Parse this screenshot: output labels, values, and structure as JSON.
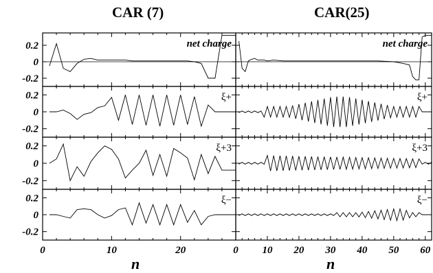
{
  "figure": {
    "columns": [
      {
        "title": "CAR (7)",
        "xlabel": "n"
      },
      {
        "title": "CAR(25)",
        "xlabel": "n"
      }
    ]
  },
  "chart_data": [
    {
      "type": "line",
      "title": "CAR (7)",
      "panel": "net charge",
      "xlabel": "n",
      "xlim": [
        0,
        28
      ],
      "ylim": [
        -0.3,
        0.35
      ],
      "yticks": [
        "0.2",
        "0",
        "-0.2"
      ],
      "xticks": [
        "0",
        "10",
        "20"
      ],
      "x": [
        1,
        2,
        3,
        4,
        5,
        6,
        7,
        8,
        9,
        10,
        11,
        12,
        13,
        14,
        15,
        16,
        17,
        18,
        19,
        20,
        21,
        22,
        23,
        24,
        25,
        26,
        27,
        28
      ],
      "series": [
        {
          "values": [
            -0.05,
            0.22,
            -0.08,
            -0.12,
            -0.02,
            0.03,
            0.04,
            0.02,
            0.02,
            0.02,
            0.02,
            0.02,
            0.01,
            0.01,
            0.01,
            0.01,
            0.01,
            0.01,
            0.01,
            0.01,
            0.01,
            0.0,
            -0.02,
            -0.2,
            -0.2,
            0.32,
            0.32,
            0.32
          ]
        }
      ]
    },
    {
      "type": "line",
      "title": "CAR (7)",
      "panel": "ξ+",
      "xlabel": "n",
      "xlim": [
        0,
        28
      ],
      "ylim": [
        -0.3,
        0.3
      ],
      "yticks": [
        "0.2",
        "0",
        "-0.2"
      ],
      "xticks": [
        "0",
        "10",
        "20"
      ],
      "x": [
        1,
        2,
        3,
        4,
        5,
        6,
        7,
        8,
        9,
        10,
        11,
        12,
        13,
        14,
        15,
        16,
        17,
        18,
        19,
        20,
        21,
        22,
        23,
        24,
        25,
        26,
        27,
        28
      ],
      "series": [
        {
          "values": [
            0.0,
            0.0,
            0.02,
            -0.02,
            -0.09,
            -0.03,
            -0.01,
            0.05,
            0.07,
            0.17,
            -0.1,
            0.2,
            -0.15,
            0.2,
            -0.16,
            0.2,
            -0.17,
            0.2,
            -0.16,
            0.2,
            -0.15,
            0.18,
            -0.17,
            0.08,
            0.0,
            0.0,
            0.0,
            0.0
          ]
        }
      ]
    },
    {
      "type": "line",
      "title": "CAR (7)",
      "panel": "ξ+3",
      "xlabel": "n",
      "xlim": [
        0,
        28
      ],
      "ylim": [
        -0.3,
        0.3
      ],
      "yticks": [
        "0.2",
        "0",
        "-0.2"
      ],
      "xticks": [
        "0",
        "10",
        "20"
      ],
      "x": [
        1,
        2,
        3,
        4,
        5,
        6,
        7,
        8,
        9,
        10,
        11,
        12,
        13,
        14,
        15,
        16,
        17,
        18,
        19,
        20,
        21,
        22,
        23,
        24,
        25,
        26,
        27,
        28
      ],
      "series": [
        {
          "values": [
            0.0,
            0.05,
            0.22,
            -0.2,
            -0.04,
            -0.15,
            0.02,
            0.12,
            0.2,
            0.16,
            0.05,
            -0.17,
            -0.08,
            0.0,
            0.15,
            -0.14,
            0.1,
            -0.15,
            0.17,
            0.12,
            0.06,
            -0.19,
            0.1,
            -0.12,
            0.08,
            -0.08,
            -0.08,
            -0.08
          ]
        }
      ]
    },
    {
      "type": "line",
      "title": "CAR (7)",
      "panel": "ξ−",
      "xlabel": "n",
      "xlim": [
        0,
        28
      ],
      "ylim": [
        -0.3,
        0.3
      ],
      "yticks": [
        "0.2",
        "0",
        "-0.2"
      ],
      "xticks": [
        "0",
        "10",
        "20"
      ],
      "x": [
        1,
        2,
        3,
        4,
        5,
        6,
        7,
        8,
        9,
        10,
        11,
        12,
        13,
        14,
        15,
        16,
        17,
        18,
        19,
        20,
        21,
        22,
        23,
        24,
        25,
        26,
        27,
        28
      ],
      "series": [
        {
          "values": [
            0.0,
            0.0,
            -0.02,
            -0.04,
            0.06,
            0.07,
            0.06,
            0.0,
            -0.04,
            -0.01,
            0.06,
            0.08,
            -0.12,
            0.14,
            -0.1,
            0.12,
            -0.12,
            0.12,
            -0.12,
            0.12,
            -0.09,
            0.05,
            -0.12,
            -0.02,
            0.0,
            0.0,
            0.0,
            0.0
          ]
        }
      ]
    },
    {
      "type": "line",
      "title": "CAR(25)",
      "panel": "net charge",
      "xlabel": "n",
      "xlim": [
        0,
        62
      ],
      "ylim": [
        -0.3,
        0.35
      ],
      "yticks": [],
      "xticks": [
        "0",
        "10",
        "20",
        "30",
        "40",
        "50",
        "60"
      ],
      "x": [
        1,
        2,
        3,
        4,
        5,
        6,
        7,
        8,
        9,
        10,
        12,
        15,
        20,
        25,
        30,
        35,
        40,
        45,
        50,
        53,
        55,
        56,
        57,
        58,
        59,
        60,
        61,
        62
      ],
      "series": [
        {
          "values": [
            0.25,
            -0.08,
            -0.12,
            0.01,
            0.03,
            0.04,
            0.02,
            0.02,
            0.02,
            0.01,
            0.02,
            0.01,
            0.01,
            0.01,
            0.01,
            0.01,
            0.01,
            0.01,
            0.0,
            -0.02,
            -0.04,
            -0.18,
            -0.22,
            -0.22,
            0.3,
            0.32,
            0.32,
            0.32
          ]
        }
      ]
    },
    {
      "type": "line",
      "title": "CAR(25)",
      "panel": "ξ+",
      "xlabel": "n",
      "xlim": [
        0,
        62
      ],
      "ylim": [
        -0.3,
        0.3
      ],
      "yticks": [],
      "xticks": [
        "0",
        "10",
        "20",
        "30",
        "40",
        "50",
        "60"
      ],
      "x_range": [
        1,
        62
      ],
      "series": [
        {
          "description_values": {
            "start": 0.0,
            "oscillation_start": 9,
            "oscillation_end": 58,
            "peak_amplitude": 0.18,
            "peak_center": 33
          }
        }
      ]
    },
    {
      "type": "line",
      "title": "CAR(25)",
      "panel": "ξ+3",
      "xlabel": "n",
      "xlim": [
        0,
        62
      ],
      "ylim": [
        -0.3,
        0.3
      ],
      "yticks": [],
      "xticks": [
        "0",
        "10",
        "20",
        "30",
        "40",
        "50",
        "60"
      ],
      "x_range": [
        1,
        62
      ],
      "series": [
        {
          "description_values": {
            "oscillation_start": 10,
            "oscillation_end": 58,
            "amplitude_start": 0.09,
            "amplitude_end": 0.05
          }
        }
      ]
    },
    {
      "type": "line",
      "title": "CAR(25)",
      "panel": "ξ−",
      "xlabel": "n",
      "xlim": [
        0,
        62
      ],
      "ylim": [
        -0.3,
        0.3
      ],
      "yticks": [],
      "xticks": [
        "0",
        "10",
        "20",
        "30",
        "40",
        "50",
        "60"
      ],
      "x_range": [
        1,
        62
      ],
      "series": [
        {
          "description_values": {
            "oscillation_start": 32,
            "oscillation_end": 58,
            "peak_amplitude": 0.07,
            "peak_center": 52
          }
        }
      ]
    }
  ]
}
